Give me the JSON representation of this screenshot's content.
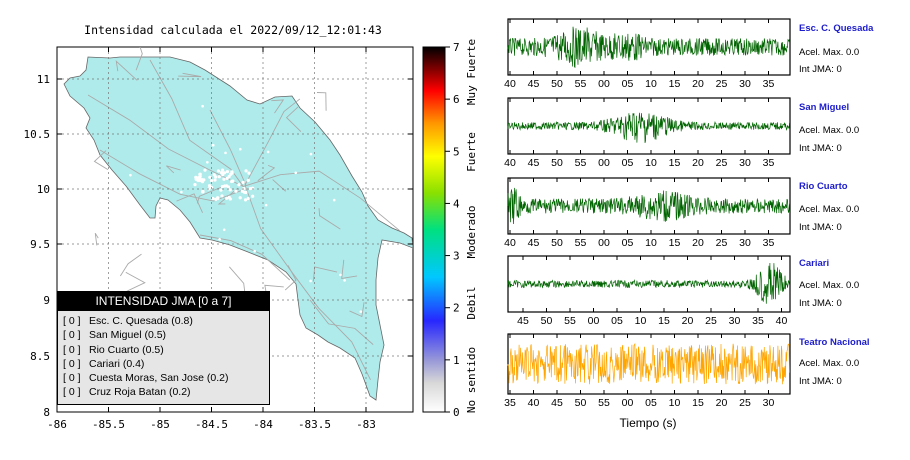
{
  "map": {
    "title": "Intensidad calculada el 2022/09/12_12:01:43",
    "lon_ticks": [
      "-86",
      "-85.5",
      "-85",
      "-84.5",
      "-84",
      "-83.5",
      "-83"
    ],
    "lat_ticks": [
      "11",
      "10.5",
      "10",
      "9.5",
      "9",
      "8.5",
      "8"
    ],
    "land_color": "#b0ebeb",
    "grid": true,
    "scale": {
      "ticks": [
        "0",
        "1",
        "2",
        "3",
        "4",
        "5",
        "6",
        "7"
      ],
      "labels": [
        "No sentido",
        "Debil",
        "Moderado",
        "Fuerte",
        "Muy Fuerte"
      ]
    }
  },
  "legend": {
    "title": "INTENSIDAD JMA [0 a 7]",
    "items": [
      {
        "level": "[ 0 ]",
        "station": "Esc. C. Quesada (0.8)"
      },
      {
        "level": "[ 0 ]",
        "station": "San Miguel (0.5)"
      },
      {
        "level": "[ 0 ]",
        "station": "Rio Cuarto (0.5)"
      },
      {
        "level": "[ 0 ]",
        "station": "Cariari (0.4)"
      },
      {
        "level": "[ 0 ]",
        "station": "Cuesta Moras, San Jose (0.2)"
      },
      {
        "level": "[ 0 ]",
        "station": "Cruz Roja Batan (0.2)"
      }
    ]
  },
  "seismograms": {
    "xlabel": "Tiempo (s)",
    "panels": [
      {
        "station": "Esc. C. Quesada",
        "accel": "Acel. Max. 0.0",
        "jma": "Int JMA: 0",
        "color": "#006400",
        "ticks": [
          "40",
          "45",
          "50",
          "55",
          "00",
          "05",
          "10",
          "15",
          "20",
          "25",
          "30",
          "35"
        ]
      },
      {
        "station": "San Miguel",
        "accel": "Acel. Max. 0.0",
        "jma": "Int JMA: 0",
        "color": "#006400",
        "ticks": [
          "40",
          "45",
          "50",
          "55",
          "00",
          "05",
          "10",
          "15",
          "20",
          "25",
          "30",
          "35"
        ]
      },
      {
        "station": "Rio Cuarto",
        "accel": "Acel. Max. 0.0",
        "jma": "Int JMA: 0",
        "color": "#006400",
        "ticks": [
          "40",
          "45",
          "50",
          "55",
          "00",
          "05",
          "10",
          "15",
          "20",
          "25",
          "30",
          "35"
        ]
      },
      {
        "station": "Cariari",
        "accel": "Acel. Max. 0.0",
        "jma": "Int JMA: 0",
        "color": "#006400",
        "ticks": [
          "45",
          "50",
          "55",
          "00",
          "05",
          "10",
          "15",
          "20",
          "25",
          "30",
          "35",
          "40"
        ]
      },
      {
        "station": "Teatro Nacional",
        "accel": "Acel. Max. 0.0",
        "jma": "Int JMA: 0",
        "color": "#ffa500",
        "ticks": [
          "35",
          "40",
          "45",
          "50",
          "55",
          "00",
          "05",
          "10",
          "15",
          "20",
          "25",
          "30"
        ]
      }
    ]
  },
  "chart_data": [
    {
      "type": "heatmap",
      "title": "Intensidad calculada el 2022/09/12_12:01:43",
      "xlim": [
        -86,
        -82.6
      ],
      "ylim": [
        8,
        11.3
      ],
      "colorbar": {
        "min": 0,
        "max": 7,
        "labels": [
          "No sentido",
          "Debil",
          "Moderado",
          "Fuerte",
          "Muy Fuerte"
        ]
      },
      "grid": true
    },
    {
      "type": "line",
      "xlabel": "Tiempo (s)",
      "series": [
        {
          "name": "Esc. C. Quesada",
          "peak_accel": 0.0,
          "jma": 0
        },
        {
          "name": "San Miguel",
          "peak_accel": 0.0,
          "jma": 0
        },
        {
          "name": "Rio Cuarto",
          "peak_accel": 0.0,
          "jma": 0
        },
        {
          "name": "Cariari",
          "peak_accel": 0.0,
          "jma": 0
        },
        {
          "name": "Teatro Nacional",
          "peak_accel": 0.0,
          "jma": 0
        }
      ]
    }
  ]
}
